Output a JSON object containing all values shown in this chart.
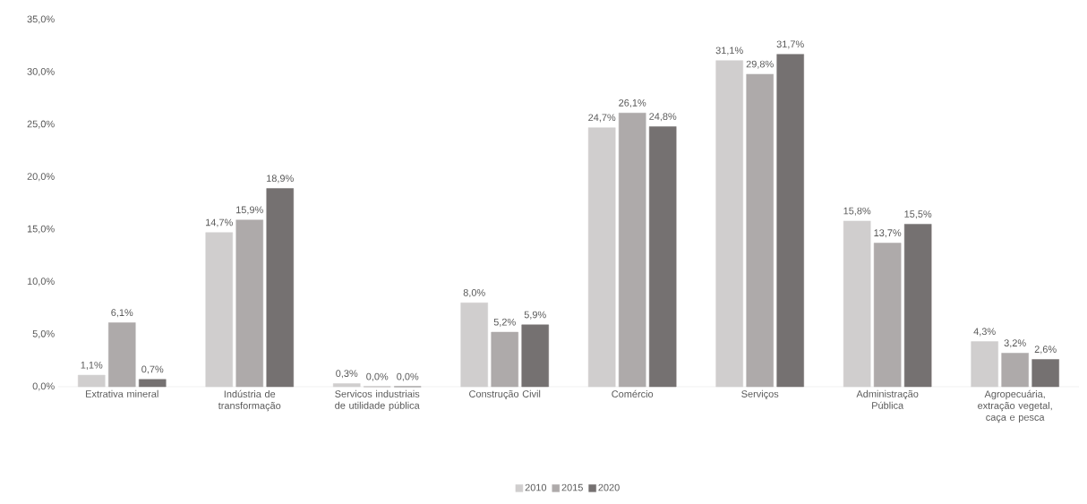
{
  "chart_data": {
    "type": "bar",
    "categories": [
      "Extrativa mineral",
      "Indústria de transformação",
      "Servicos industriais de utilidade pública",
      "Construção Civil",
      "Comércio",
      "Serviços",
      "Administração Pública",
      "Agropecuária, extração vegetal, caça e pesca"
    ],
    "series": [
      {
        "name": "2010",
        "color": "#d0cece",
        "values": [
          1.1,
          14.7,
          0.3,
          8.0,
          24.7,
          31.1,
          15.8,
          4.3
        ],
        "value_labels": [
          "1,1%",
          "14,7%",
          "0,3%",
          "8,0%",
          "24,7%",
          "31,1%",
          "15,8%",
          "4,3%"
        ]
      },
      {
        "name": "2015",
        "color": "#aeaaaa",
        "values": [
          6.1,
          15.9,
          0.0,
          5.2,
          26.1,
          29.8,
          13.7,
          3.2
        ],
        "value_labels": [
          "6,1%",
          "15,9%",
          "0,0%",
          "5,2%",
          "26,1%",
          "29,8%",
          "13,7%",
          "3,2%"
        ]
      },
      {
        "name": "2020",
        "color": "#757171",
        "values": [
          0.7,
          18.9,
          0.0,
          5.9,
          24.8,
          31.7,
          15.5,
          2.6
        ],
        "value_labels": [
          "0,7%",
          "18,9%",
          "0,0%",
          "5,9%",
          "24,8%",
          "31,7%",
          "15,5%",
          "2,6%"
        ]
      }
    ],
    "ylim": [
      0,
      35
    ],
    "yticks": [
      {
        "value": 0,
        "label": "0,0%"
      },
      {
        "value": 5,
        "label": "5,0%"
      },
      {
        "value": 10,
        "label": "10,0%"
      },
      {
        "value": 15,
        "label": "15,0%"
      },
      {
        "value": 20,
        "label": "20,0%"
      },
      {
        "value": 25,
        "label": "25,0%"
      },
      {
        "value": 30,
        "label": "30,0%"
      },
      {
        "value": 35,
        "label": "35,0%"
      }
    ],
    "grid": false,
    "legend": "bottom"
  }
}
